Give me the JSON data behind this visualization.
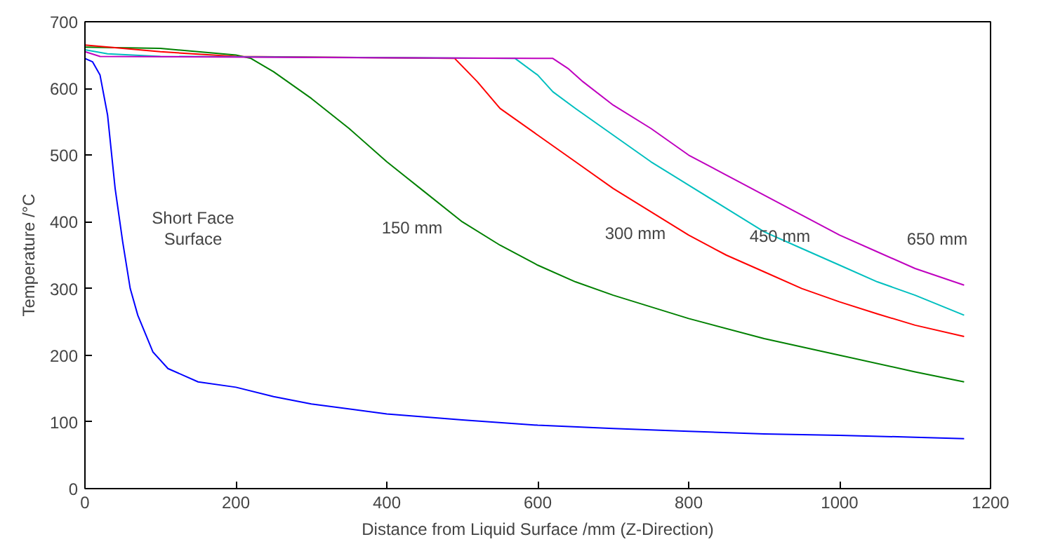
{
  "chart_data": {
    "type": "line",
    "xlabel": "Distance from Liquid Surface /mm (Z-Direction)",
    "ylabel": "Temperature /°C",
    "xlim": [
      0,
      1200
    ],
    "ylim": [
      0,
      700
    ],
    "xticks": [
      0,
      200,
      400,
      600,
      800,
      1000,
      1200
    ],
    "yticks": [
      0,
      100,
      200,
      300,
      400,
      500,
      600,
      700
    ],
    "grid": false,
    "marker": "none",
    "line_style": "solid",
    "annotations": [
      "Short Face\nSurface",
      "150 mm",
      "300 mm",
      "450 mm",
      "650 mm"
    ],
    "series": [
      {
        "color": "#0000ff",
        "x": [
          0,
          10,
          20,
          30,
          40,
          50,
          60,
          70,
          90,
          110,
          150,
          200,
          250,
          300,
          400,
          500,
          600,
          700,
          800,
          900,
          1000,
          1100,
          1165
        ],
        "values": [
          645,
          640,
          620,
          560,
          450,
          370,
          300,
          260,
          205,
          180,
          160,
          152,
          138,
          127,
          112,
          103,
          95,
          90,
          86,
          82,
          80,
          77,
          75
        ]
      },
      {
        "color": "#008000",
        "x": [
          0,
          100,
          200,
          220,
          250,
          300,
          350,
          400,
          450,
          500,
          550,
          600,
          650,
          700,
          800,
          900,
          1000,
          1100,
          1165
        ],
        "values": [
          662,
          660,
          650,
          645,
          625,
          585,
          540,
          490,
          445,
          400,
          365,
          335,
          310,
          290,
          255,
          225,
          200,
          175,
          160
        ]
      },
      {
        "color": "#ff0000",
        "x": [
          0,
          100,
          200,
          490,
          520,
          550,
          600,
          650,
          700,
          750,
          800,
          850,
          900,
          950,
          1000,
          1050,
          1100,
          1165
        ],
        "values": [
          665,
          655,
          648,
          645,
          610,
          570,
          530,
          490,
          450,
          415,
          380,
          350,
          325,
          300,
          280,
          262,
          245,
          228
        ]
      },
      {
        "color": "#00bfbf",
        "x": [
          0,
          30,
          100,
          570,
          600,
          620,
          650,
          700,
          750,
          800,
          850,
          900,
          950,
          1000,
          1050,
          1100,
          1165
        ],
        "values": [
          658,
          652,
          648,
          645,
          620,
          595,
          570,
          530,
          490,
          455,
          420,
          385,
          360,
          335,
          310,
          290,
          260
        ]
      },
      {
        "color": "#bf00bf",
        "x": [
          0,
          20,
          600,
          620,
          640,
          660,
          700,
          750,
          800,
          850,
          900,
          950,
          1000,
          1050,
          1100,
          1165
        ],
        "values": [
          655,
          648,
          645,
          645,
          630,
          610,
          575,
          540,
          500,
          470,
          440,
          410,
          380,
          355,
          330,
          305
        ]
      }
    ]
  }
}
